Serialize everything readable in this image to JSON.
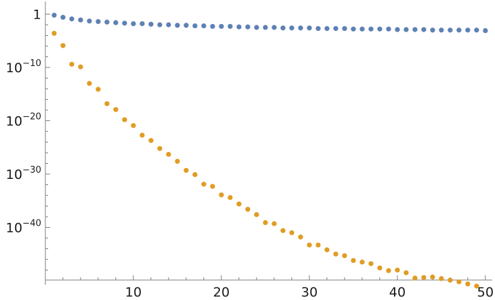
{
  "chart_data": {
    "type": "scatter",
    "title": "",
    "xlabel": "",
    "ylabel": "",
    "x_scale": "linear",
    "y_scale": "log",
    "xlim": [
      0,
      50
    ],
    "ylim_log10": [
      -50,
      2
    ],
    "grid": false,
    "legend": "none",
    "x_ticks": [
      {
        "value": 10,
        "label": "10"
      },
      {
        "value": 20,
        "label": "20"
      },
      {
        "value": 30,
        "label": "30"
      },
      {
        "value": 40,
        "label": "40"
      },
      {
        "value": 50,
        "label": "50"
      }
    ],
    "y_ticks": [
      {
        "log10": 0,
        "base": "1",
        "exp": ""
      },
      {
        "log10": -10,
        "base": "10",
        "exp": "−10"
      },
      {
        "log10": -20,
        "base": "10",
        "exp": "−20"
      },
      {
        "log10": -30,
        "base": "10",
        "exp": "−30"
      },
      {
        "log10": -40,
        "base": "10",
        "exp": "−40"
      }
    ],
    "series": [
      {
        "color": "#5e81b5",
        "x": [
          1,
          2,
          3,
          4,
          5,
          6,
          7,
          8,
          9,
          10,
          11,
          12,
          13,
          14,
          15,
          16,
          17,
          18,
          19,
          20,
          21,
          22,
          23,
          24,
          25,
          26,
          27,
          28,
          29,
          30,
          31,
          32,
          33,
          34,
          35,
          36,
          37,
          38,
          39,
          40,
          41,
          42,
          43,
          44,
          45,
          46,
          47,
          48,
          49,
          50
        ],
        "log10_y": [
          -0.2,
          -0.6,
          -0.9,
          -1.1,
          -1.3,
          -1.4,
          -1.5,
          -1.6,
          -1.7,
          -1.8,
          -1.8,
          -1.9,
          -2.0,
          -2.0,
          -2.1,
          -2.1,
          -2.2,
          -2.2,
          -2.3,
          -2.3,
          -2.3,
          -2.4,
          -2.4,
          -2.5,
          -2.5,
          -2.5,
          -2.6,
          -2.6,
          -2.6,
          -2.6,
          -2.7,
          -2.7,
          -2.7,
          -2.7,
          -2.8,
          -2.8,
          -2.8,
          -2.8,
          -2.8,
          -2.9,
          -2.9,
          -2.9,
          -2.9,
          -3.0,
          -3.0,
          -3.0,
          -3.0,
          -3.0,
          -3.0,
          -3.1
        ]
      },
      {
        "color": "#e19c24",
        "x": [
          1,
          2,
          3,
          4,
          5,
          6,
          7,
          8,
          9,
          10,
          11,
          12,
          13,
          14,
          15,
          16,
          17,
          18,
          19,
          20,
          21,
          22,
          23,
          24,
          25,
          26,
          27,
          28,
          29,
          30,
          31,
          32,
          33,
          34,
          35,
          36,
          37,
          38,
          39,
          40,
          41,
          42,
          43,
          44,
          45,
          46,
          47,
          48,
          49
        ],
        "log10_y": [
          -3.6,
          -5.9,
          -9.4,
          -9.9,
          -13.0,
          -14.1,
          -16.8,
          -17.9,
          -19.8,
          -20.9,
          -22.7,
          -23.7,
          -25.2,
          -26.3,
          -27.6,
          -29.3,
          -30.1,
          -31.9,
          -32.3,
          -33.9,
          -34.4,
          -35.6,
          -36.6,
          -37.6,
          -39.1,
          -39.3,
          -40.6,
          -41.0,
          -41.8,
          -43.3,
          -43.3,
          -44.2,
          -45.0,
          -45.3,
          -46.2,
          -46.5,
          -46.8,
          -47.6,
          -48.1,
          -48.0,
          -48.5,
          -49.5,
          -49.4,
          -49.3,
          -49.6,
          -49.9,
          -50.2,
          -50.6,
          -51.0
        ]
      }
    ]
  }
}
